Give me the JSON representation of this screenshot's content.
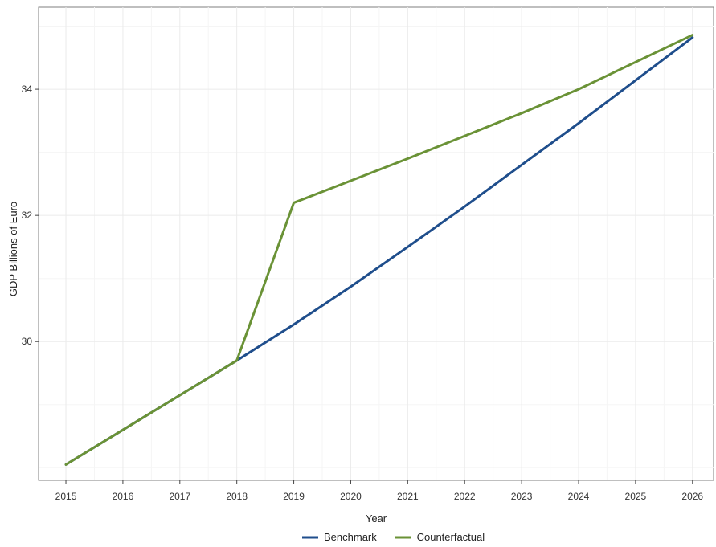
{
  "chart_data": {
    "type": "line",
    "title": "",
    "xlabel": "Year",
    "ylabel": "GDP Billions of Euro",
    "x": [
      2015,
      2016,
      2017,
      2018,
      2019,
      2020,
      2021,
      2022,
      2023,
      2024,
      2025,
      2026
    ],
    "xlim": [
      2014.52,
      2026.37
    ],
    "ylim": [
      27.8,
      35.3
    ],
    "yticks": [
      30,
      32,
      34
    ],
    "series": [
      {
        "name": "Benchmark",
        "color": "#1f4e8c",
        "values": [
          28.05,
          28.6,
          29.15,
          29.7,
          30.27,
          30.87,
          31.5,
          32.14,
          32.8,
          33.46,
          34.14,
          34.82
        ]
      },
      {
        "name": "Counterfactual",
        "color": "#6a9236",
        "values": [
          28.05,
          28.6,
          29.15,
          29.7,
          32.2,
          32.55,
          32.9,
          33.26,
          33.62,
          34.0,
          34.43,
          34.86
        ]
      }
    ],
    "grid": true,
    "legend_position": "bottom"
  }
}
